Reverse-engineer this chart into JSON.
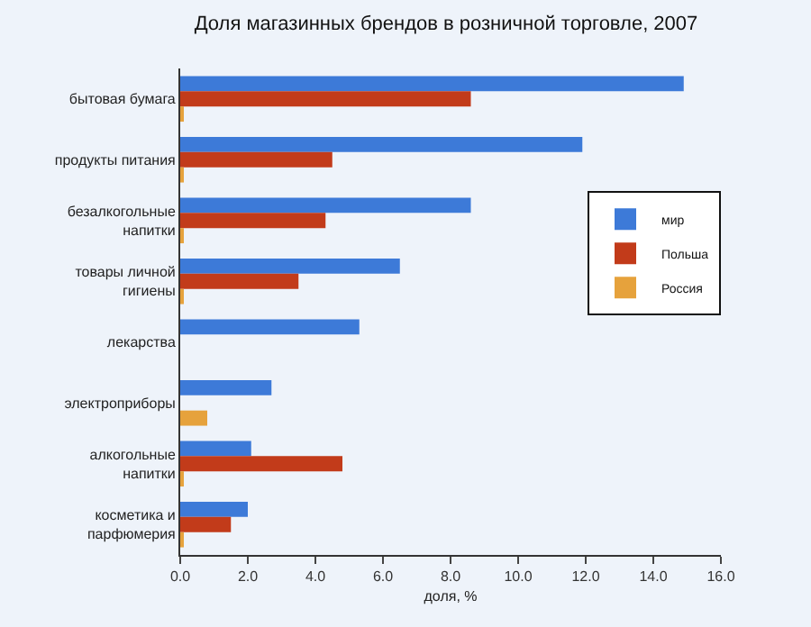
{
  "chart_data": {
    "type": "bar",
    "orientation": "horizontal",
    "title": "Доля магазинных брендов в розничной торговле, 2007",
    "xlabel": "доля, %",
    "categories": [
      "бытовая бумага",
      "продукты питания",
      "безалкогольные\nнапитки",
      "товары личной\nгигиены",
      "лекарства",
      "электроприборы",
      "алкогольные\nнапитки",
      "косметика и\nпарфюмерия"
    ],
    "series": [
      {
        "name": "мир",
        "color": "#3d7ad8",
        "values": [
          14.9,
          11.9,
          8.6,
          6.5,
          5.3,
          2.7,
          2.1,
          2.0
        ]
      },
      {
        "name": "Польша",
        "color": "#c23b1a",
        "values": [
          8.6,
          4.5,
          4.3,
          3.5,
          null,
          null,
          4.8,
          1.5
        ]
      },
      {
        "name": "Россия",
        "color": "#e6a23c",
        "values": [
          0.1,
          0.1,
          0.1,
          0.1,
          null,
          0.8,
          0.1,
          0.1
        ]
      }
    ],
    "xlim": [
      0,
      16
    ],
    "xticks": [
      {
        "value": 0,
        "label": "0.0"
      },
      {
        "value": 2,
        "label": "2.0"
      },
      {
        "value": 4,
        "label": "4.0"
      },
      {
        "value": 6,
        "label": "6.0"
      },
      {
        "value": 8,
        "label": "8.0"
      },
      {
        "value": 10,
        "label": "10.0"
      },
      {
        "value": 12,
        "label": "12.0"
      },
      {
        "value": 14,
        "label": "14.0"
      },
      {
        "value": 16,
        "label": "16.0"
      }
    ],
    "grid": false,
    "legend": "right"
  }
}
